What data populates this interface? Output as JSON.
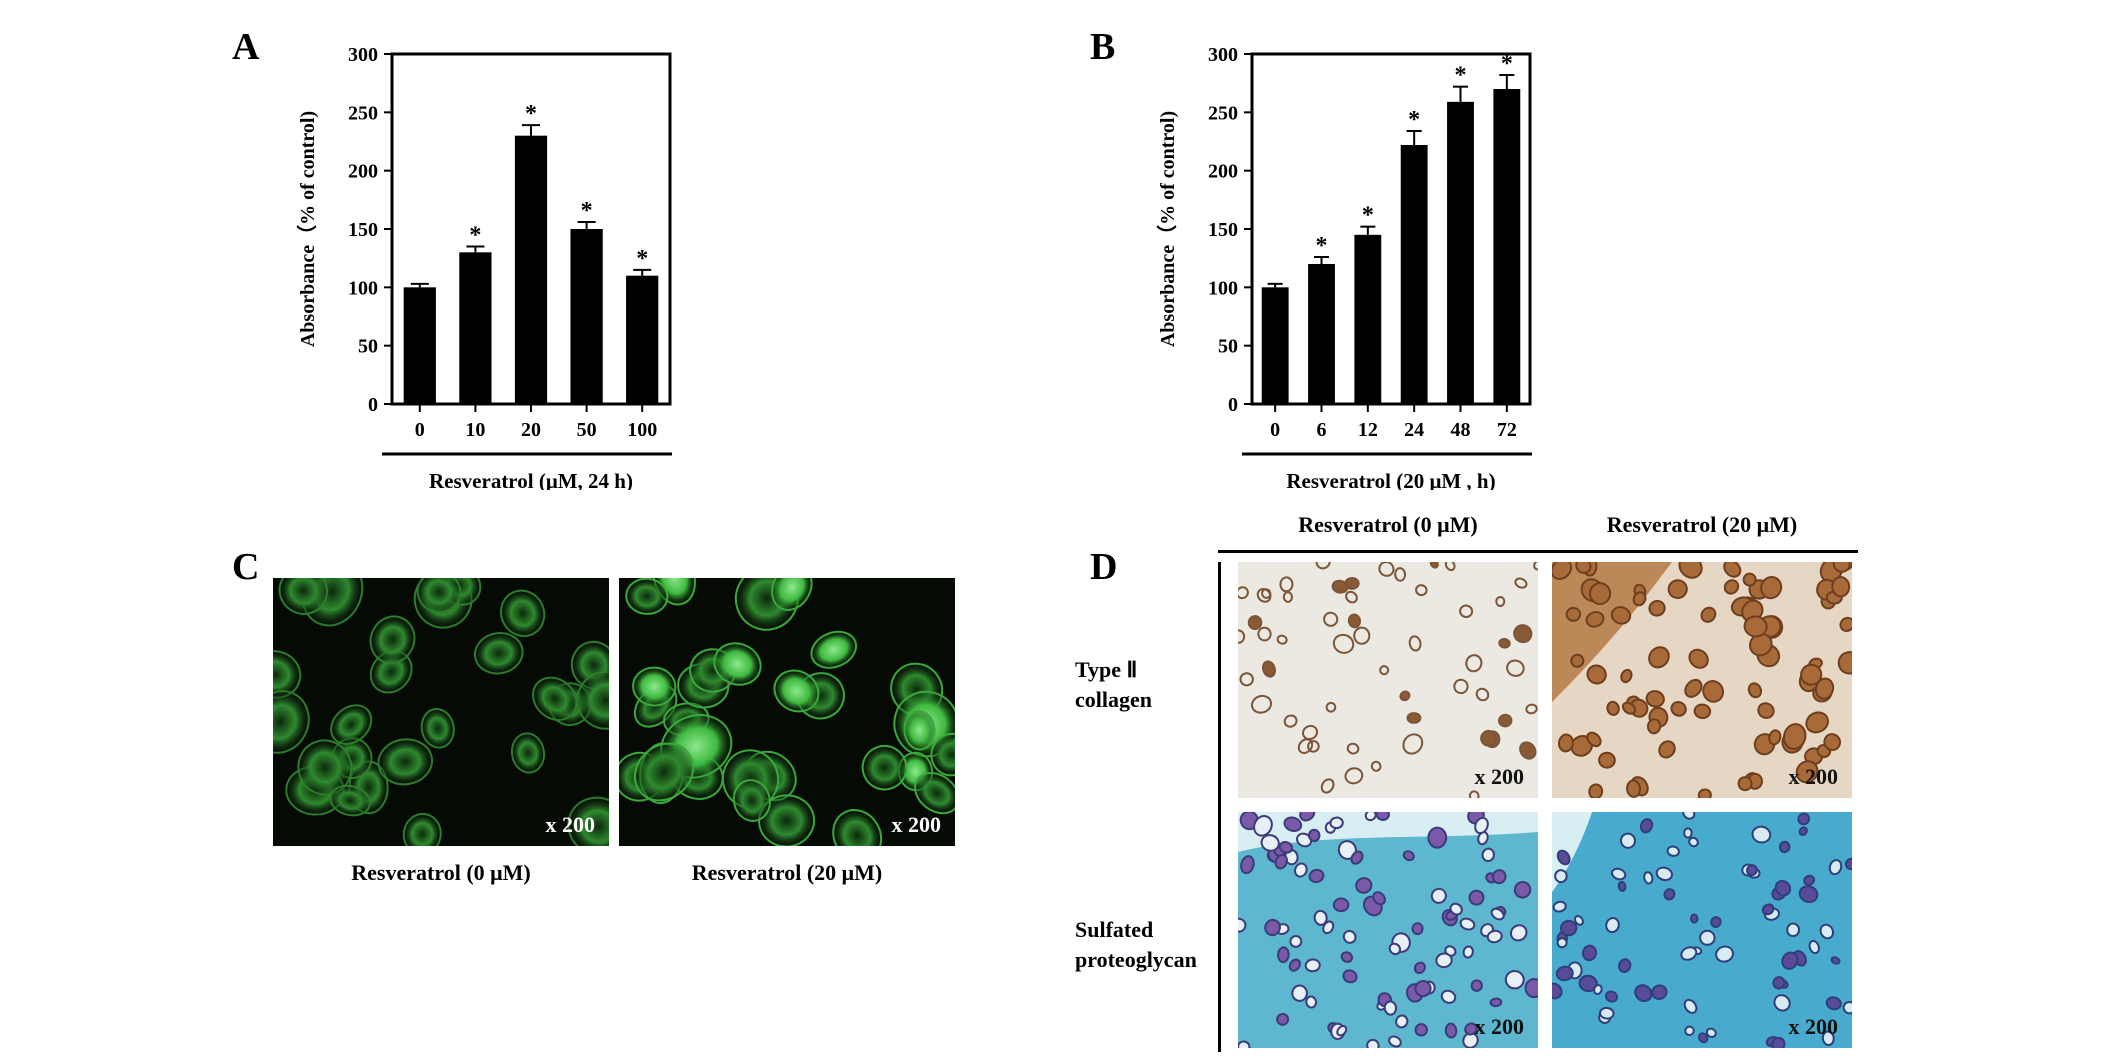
{
  "panels": {
    "A": {
      "letter": "A"
    },
    "B": {
      "letter": "B"
    },
    "C": {
      "letter": "C",
      "left_caption": "Resveratrol (0 μM)",
      "right_caption": "Resveratrol (20 μM)",
      "magnification": "x 200"
    },
    "D": {
      "letter": "D",
      "col_left": "Resveratrol (0 μM)",
      "col_right": "Resveratrol (20 μM)",
      "row_top": "Type Ⅱ\ncollagen",
      "row_bottom": "Sulfated\nproteoglycan",
      "magnification": "x 200"
    }
  },
  "chart_data": [
    {
      "panel": "A",
      "type": "bar",
      "categories": [
        "0",
        "10",
        "20",
        "50",
        "100"
      ],
      "values": [
        100,
        130,
        230,
        150,
        110
      ],
      "errors": [
        3,
        5,
        9,
        6,
        5
      ],
      "significant": [
        false,
        true,
        true,
        true,
        true
      ],
      "significance_marker": "*",
      "ylabel": "Absorbance（% of control)",
      "xlabel": "Resveratrol (μM, 24 h)",
      "ylim": [
        0,
        300
      ],
      "yticks": [
        0,
        50,
        100,
        150,
        200,
        250,
        300
      ],
      "bar_color": "#000000"
    },
    {
      "panel": "B",
      "type": "bar",
      "categories": [
        "0",
        "6",
        "12",
        "24",
        "48",
        "72"
      ],
      "values": [
        100,
        120,
        145,
        222,
        259,
        270
      ],
      "errors": [
        3,
        6,
        7,
        12,
        13,
        12
      ],
      "significant": [
        false,
        true,
        true,
        true,
        true,
        true
      ],
      "significance_marker": "*",
      "ylabel": "Absorbance（% of control)",
      "xlabel": "Resveratrol (20 μM , h)",
      "ylim": [
        0,
        300
      ],
      "yticks": [
        0,
        50,
        100,
        150,
        200,
        250,
        300
      ],
      "bar_color": "#000000"
    }
  ]
}
